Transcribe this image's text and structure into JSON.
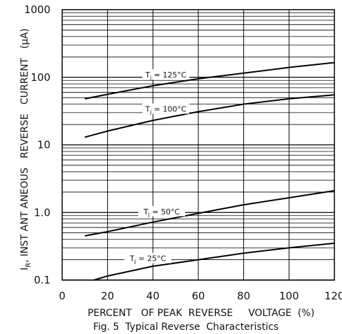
{
  "chart_data": {
    "type": "line",
    "title": "Fig. 5  Typical Reverse  Characteristics",
    "xlabel": "PERCENT   OF PEAK  REVERSE     VOLTAGE  (%)",
    "ylabel": "Iₗ, INSTANTANEOUS  REVERSE  CURRENT  (µA)",
    "ylabel_parts": {
      "prefix": "I",
      "subscript": "R",
      "rest": ", INST ANT ANEOUS   REVERSE   CURRENT   (µA)"
    },
    "x_ticks": [
      "0",
      "20",
      "40",
      "60",
      "80",
      "100",
      "120"
    ],
    "y_ticks": [
      "0.1",
      "1.0",
      "10",
      "100",
      "1000"
    ],
    "xlim": [
      0,
      120
    ],
    "ylim": [
      0.1,
      1000
    ],
    "y_scale": "log",
    "grid": true,
    "series": [
      {
        "name": "Tj = 125°C",
        "label_main": "T",
        "label_sub": "j",
        "label_rest": " = 125°C",
        "x": [
          10,
          20,
          40,
          60,
          80,
          100,
          120
        ],
        "y": [
          48,
          56,
          75,
          95,
          115,
          140,
          165
        ]
      },
      {
        "name": "Tj = 100°C",
        "label_main": "T",
        "label_sub": "j",
        "label_rest": " = 100°C",
        "x": [
          10,
          20,
          40,
          60,
          80,
          100,
          120
        ],
        "y": [
          13,
          16,
          23,
          31,
          40,
          48,
          55
        ]
      },
      {
        "name": "Tj = 50°C",
        "label_main": "T",
        "label_sub": "j",
        "label_rest": " = 50°C",
        "x": [
          10,
          20,
          40,
          60,
          80,
          100,
          120
        ],
        "y": [
          0.45,
          0.52,
          0.72,
          0.97,
          1.3,
          1.65,
          2.1
        ]
      },
      {
        "name": "Tj = 25°C",
        "label_main": "T",
        "label_sub": "j",
        "label_rest": " = 25°C",
        "x": [
          14,
          20,
          40,
          60,
          80,
          100,
          120
        ],
        "y": [
          0.1,
          0.115,
          0.16,
          0.2,
          0.25,
          0.3,
          0.35
        ]
      }
    ]
  }
}
